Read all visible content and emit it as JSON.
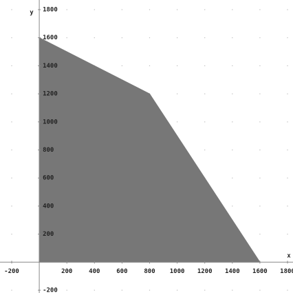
{
  "chart_data": {
    "type": "area",
    "x": [
      0,
      0,
      800,
      1600
    ],
    "values": [
      0,
      1600,
      1200,
      0
    ],
    "color": "#777777",
    "xlabel": "x",
    "ylabel": "y",
    "xlim": [
      -200,
      1800
    ],
    "ylim": [
      -200,
      1800
    ],
    "xticks": [
      {
        "value": -200,
        "label": "-200"
      },
      200,
      400,
      600,
      800,
      1000,
      1200,
      1400,
      1600,
      1800
    ],
    "yticks": [
      {
        "value": -200,
        "label": "-200"
      },
      200,
      400,
      600,
      800,
      1000,
      1200,
      1400,
      1600,
      1800
    ],
    "grid": true
  }
}
